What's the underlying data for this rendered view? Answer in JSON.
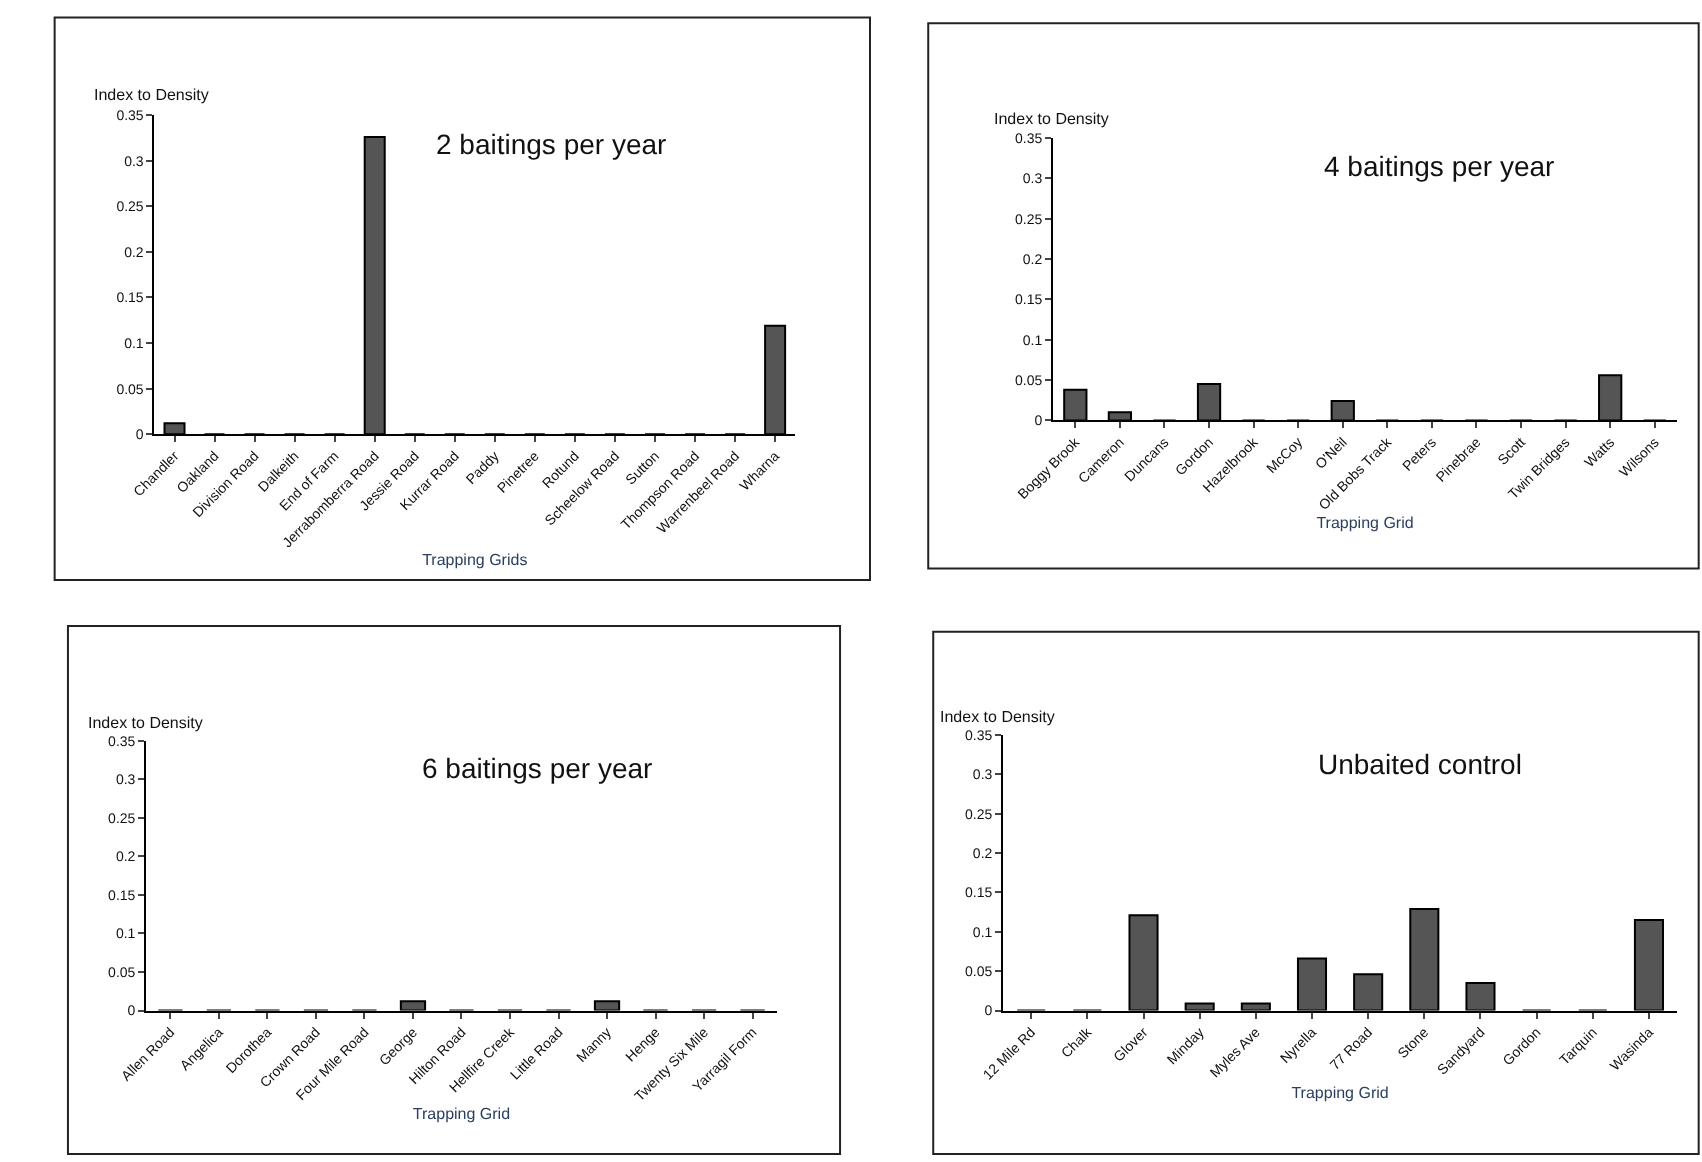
{
  "chart_data": [
    {
      "type": "bar",
      "title": "2 baitings per year",
      "ylabel": "Index to Density",
      "xlabel": "Trapping Grids",
      "color": "#555555",
      "categories": [
        "Chandler",
        "Oakland",
        "Division Road",
        "Dalkeith",
        "End of Farm",
        "Jerrabomberra Road",
        "Jessie Road",
        "Kurrar Road",
        "Paddy",
        "Pinetree",
        "Rotund",
        "Scheelow Road",
        "Sutton",
        "Thompson Road",
        "Warrenbeel Road",
        "Wharna"
      ],
      "values": [
        0.012,
        0,
        0,
        0,
        0,
        0.326,
        0,
        0,
        0,
        0,
        0,
        0,
        0,
        0,
        0,
        0.119
      ],
      "ylim": [
        0,
        0.35
      ],
      "yticks": [
        0,
        0.05,
        0.1,
        0.15,
        0.2,
        0.25,
        0.3,
        0.35
      ]
    },
    {
      "type": "bar",
      "title": "4 baitings per year",
      "ylabel": "Index to Density",
      "xlabel": "Trapping Grid",
      "color": "#555555",
      "categories": [
        "Boggy Brook",
        "Cameron",
        "Duncans",
        "Gordon",
        "Hazelbrook",
        "McCoy",
        "O'Neil",
        "Old Bobs Track",
        "Peters",
        "Pinebrae",
        "Scott",
        "Twin Bridges",
        "Watts",
        "Wilsons"
      ],
      "values": [
        0.038,
        0.01,
        0,
        0.045,
        0,
        0,
        0.024,
        0,
        0,
        0,
        0,
        0,
        0.056,
        0
      ],
      "ylim": [
        0,
        0.35
      ],
      "yticks": [
        0,
        0.05,
        0.1,
        0.15,
        0.2,
        0.25,
        0.3,
        0.35
      ]
    },
    {
      "type": "bar",
      "title": "6 baitings per year",
      "ylabel": "Index to Density",
      "xlabel": "Trapping Grid",
      "color": "#555555",
      "categories": [
        "Allen Road",
        "Angelica",
        "Dorothea",
        "Crown Road",
        "Four Mile Road",
        "George",
        "Hilton Road",
        "Hellfire Creek",
        "Little Road",
        "Manny",
        "Henge",
        "Twenty Six Mile",
        "Yarragil Form"
      ],
      "values": [
        0,
        0,
        0,
        0,
        0,
        0.012,
        0,
        0,
        0,
        0.012,
        0,
        0,
        0
      ],
      "ylim": [
        0,
        0.35
      ],
      "yticks": [
        0,
        0.05,
        0.1,
        0.15,
        0.2,
        0.25,
        0.3,
        0.35
      ]
    },
    {
      "type": "bar",
      "title": "Unbaited control",
      "ylabel": "Index to Density",
      "xlabel": "Trapping Grid",
      "color": "#555555",
      "categories": [
        "12 Mile Rd",
        "Chalk",
        "Glover",
        "Minday",
        "Myles Ave",
        "Nyrella",
        "77 Road",
        "Stone",
        "Sandyard",
        "Gordon",
        "Tarquin",
        "Wasinda"
      ],
      "values": [
        0,
        0,
        0.121,
        0.009,
        0.009,
        0.066,
        0.046,
        0.129,
        0.035,
        0,
        0,
        0.115
      ],
      "ylim": [
        0,
        0.35
      ],
      "yticks": [
        0,
        0.05,
        0.1,
        0.15,
        0.2,
        0.25,
        0.3,
        0.35
      ]
    }
  ]
}
